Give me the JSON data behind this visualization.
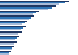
{
  "n_groups": 11,
  "values_2022": [
    88,
    72,
    50,
    44,
    35,
    33,
    28,
    24,
    22,
    18,
    14
  ],
  "values_2021": [
    83,
    67,
    46,
    40,
    32,
    30,
    26,
    22,
    20,
    16,
    12
  ],
  "values_2020": [
    76,
    61,
    42,
    37,
    28,
    27,
    23,
    19,
    18,
    15,
    11
  ],
  "color_2022": "#1f3864",
  "color_2021": "#2e75b6",
  "color_2020": "#a9bcd8",
  "background_color": "#ffffff",
  "xlim": [
    0,
    100
  ]
}
